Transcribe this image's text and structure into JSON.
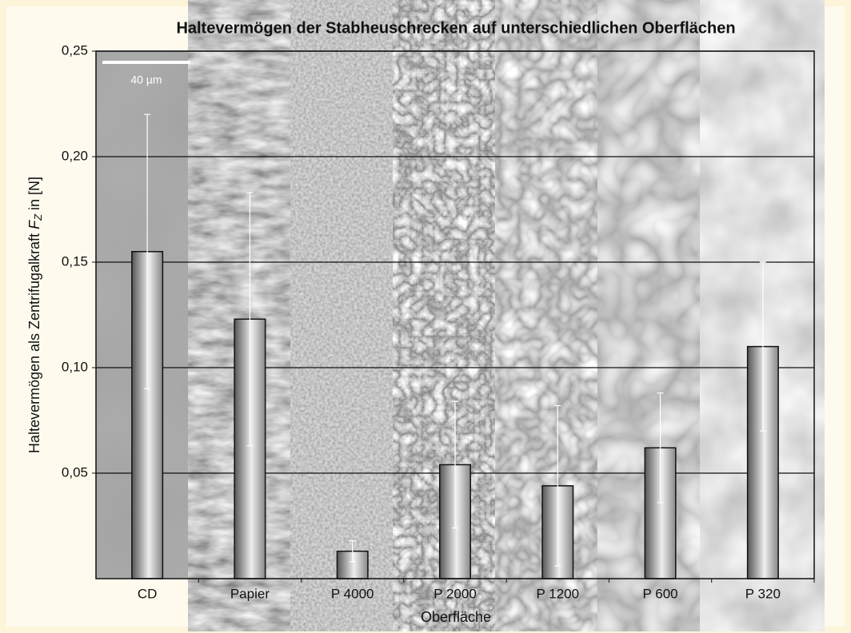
{
  "chart_data": {
    "type": "bar",
    "title": "Haltevermögen der Stabheuschrecken auf unterschiedlichen Oberflächen",
    "xlabel": "Oberfläche",
    "ylabel": {
      "text": "Haltevermögen als Zentrifugalkraft",
      "symbol": "F",
      "subscript": "Z",
      "unit": "in [N]"
    },
    "annotation": "40 µm",
    "categories": [
      "CD",
      "Papier",
      "P 4000",
      "P 2000",
      "P 1200",
      "P 600",
      "P 320"
    ],
    "values": [
      0.155,
      0.123,
      0.013,
      0.054,
      0.044,
      0.062,
      0.11
    ],
    "errors": [
      0.065,
      0.06,
      0.005,
      0.03,
      0.038,
      0.026,
      0.04
    ],
    "ylim": [
      0,
      0.25
    ],
    "yticks": [
      {
        "value": 0.05,
        "label": "0,05"
      },
      {
        "value": 0.1,
        "label": "0,10"
      },
      {
        "value": 0.15,
        "label": "0,15"
      },
      {
        "value": 0.2,
        "label": "0,20"
      },
      {
        "value": 0.25,
        "label": "0,25"
      }
    ],
    "grid": true,
    "color": "#9a9a9a",
    "error_color": "#ffffff"
  }
}
